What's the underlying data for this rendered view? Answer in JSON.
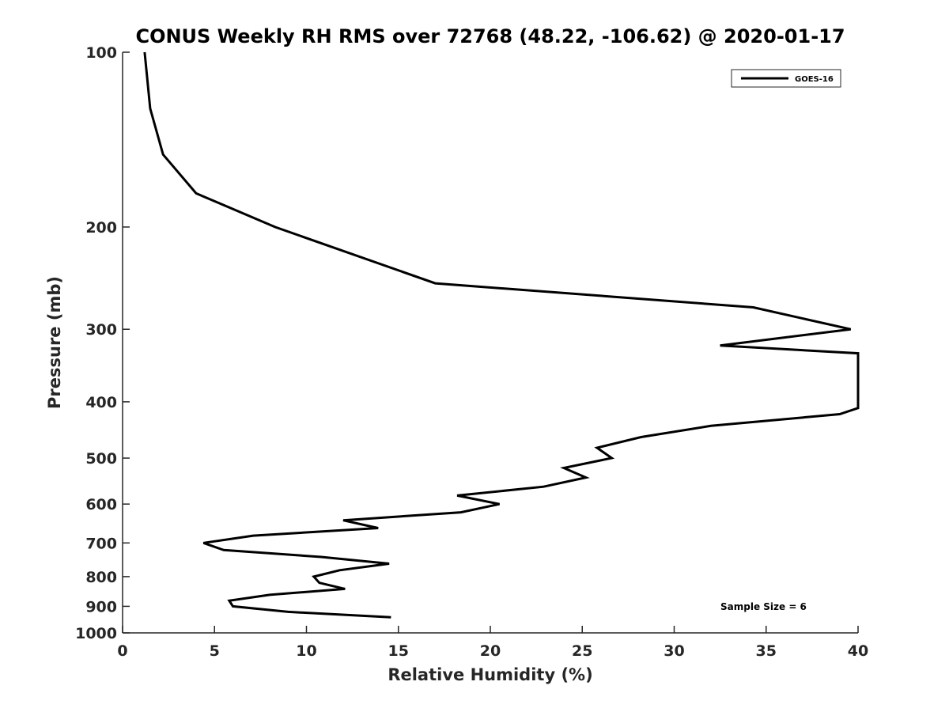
{
  "chart_data": {
    "type": "line",
    "title": "CONUS Weekly RH RMS over 72768 (48.22, -106.62) @ 2020-01-17",
    "xlabel": "Relative Humidity (%)",
    "ylabel": "Pressure (mb)",
    "xlim": [
      0,
      40
    ],
    "ylim": [
      100,
      1000
    ],
    "yscale": "log",
    "y_reversed": true,
    "x_ticks": [
      0,
      5,
      10,
      15,
      20,
      25,
      30,
      35,
      40
    ],
    "y_ticks": [
      100,
      200,
      300,
      400,
      500,
      600,
      700,
      800,
      900,
      1000
    ],
    "grid": false,
    "legend_position": "top-right",
    "series": [
      {
        "name": "GOES-16",
        "color": "#000000",
        "points": [
          [
            1.2,
            100
          ],
          [
            1.5,
            125
          ],
          [
            2.2,
            150
          ],
          [
            4.0,
            175
          ],
          [
            8.3,
            200
          ],
          [
            17.0,
            250
          ],
          [
            34.3,
            275
          ],
          [
            39.6,
            300
          ],
          [
            32.5,
            320
          ],
          [
            40.0,
            330
          ],
          [
            40.0,
            410
          ],
          [
            39.0,
            420
          ],
          [
            32.0,
            440
          ],
          [
            28.2,
            460
          ],
          [
            25.8,
            480
          ],
          [
            26.6,
            500
          ],
          [
            24.0,
            520
          ],
          [
            25.2,
            540
          ],
          [
            22.9,
            560
          ],
          [
            18.2,
            580
          ],
          [
            20.5,
            600
          ],
          [
            18.4,
            620
          ],
          [
            12.0,
            640
          ],
          [
            13.9,
            660
          ],
          [
            7.1,
            680
          ],
          [
            4.4,
            700
          ],
          [
            5.5,
            720
          ],
          [
            10.8,
            740
          ],
          [
            14.5,
            760
          ],
          [
            11.8,
            780
          ],
          [
            10.4,
            800
          ],
          [
            10.7,
            820
          ],
          [
            12.1,
            840
          ],
          [
            8.0,
            860
          ],
          [
            5.8,
            880
          ],
          [
            6.0,
            900
          ],
          [
            9.0,
            920
          ],
          [
            14.6,
            940
          ]
        ]
      }
    ],
    "annotations": [
      "Sample Size = 6"
    ]
  }
}
